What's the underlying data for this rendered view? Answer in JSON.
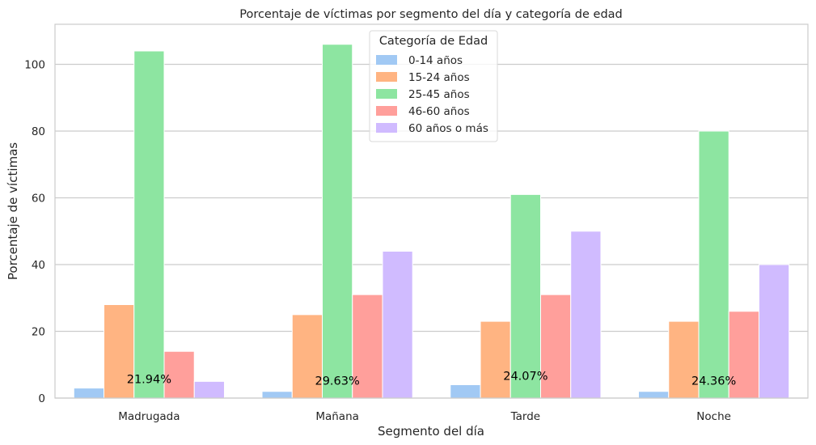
{
  "chart_data": {
    "type": "bar",
    "title": "Porcentaje de víctimas por segmento del día y categoría de edad",
    "xlabel": "Segmento del día",
    "ylabel": "Porcentaje de víctimas",
    "categories": [
      "Madrugada",
      "Mañana",
      "Tarde",
      "Noche"
    ],
    "ylim": [
      0,
      112
    ],
    "yticks": [
      0,
      20,
      40,
      60,
      80,
      100
    ],
    "grid": true,
    "legend": {
      "title": "Categoría de Edad",
      "placement": "top-center"
    },
    "series": [
      {
        "name": "0-14 años",
        "color": "#a1c9f4",
        "values": [
          3,
          2,
          4,
          2
        ]
      },
      {
        "name": "15-24 años",
        "color": "#ffb482",
        "values": [
          28,
          25,
          23,
          23
        ]
      },
      {
        "name": "25-45 años",
        "color": "#8de5a1",
        "values": [
          104,
          106,
          61,
          80
        ]
      },
      {
        "name": "46-60 años",
        "color": "#ff9f9b",
        "values": [
          14,
          31,
          31,
          26
        ]
      },
      {
        "name": "60 años o más",
        "color": "#d0bbff",
        "values": [
          5,
          44,
          50,
          40
        ]
      }
    ],
    "annotations": [
      {
        "category": "Madrugada",
        "text": "21.94%",
        "y": 4.5
      },
      {
        "category": "Mañana",
        "text": "29.63%",
        "y": 4.0
      },
      {
        "category": "Tarde",
        "text": "24.07%",
        "y": 5.5
      },
      {
        "category": "Noche",
        "text": "24.36%",
        "y": 4.0
      }
    ]
  }
}
